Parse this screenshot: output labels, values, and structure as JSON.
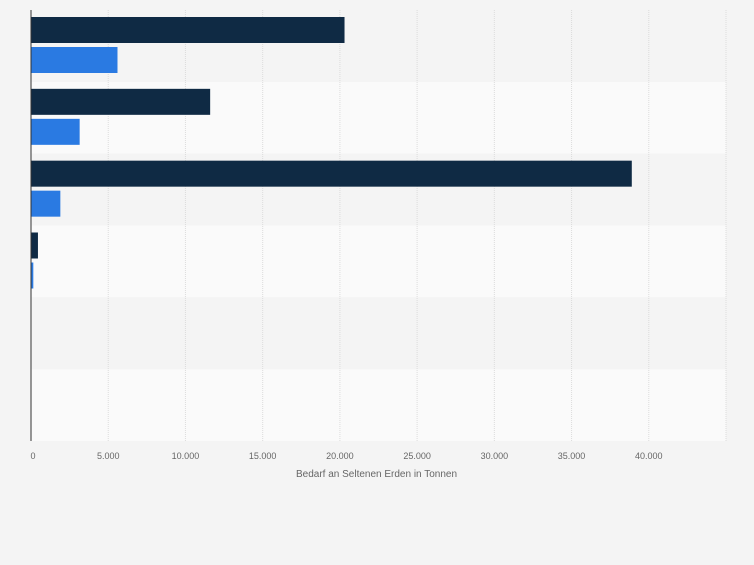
{
  "chart_data": {
    "type": "bar",
    "orientation": "horizontal",
    "categories": [
      "",
      "",
      "",
      "",
      "",
      ""
    ],
    "series": [
      {
        "values": [
          20300,
          11600,
          38900,
          450,
          0,
          0
        ]
      },
      {
        "values": [
          5600,
          3150,
          1900,
          150,
          0,
          0
        ]
      }
    ],
    "xlabel": "Bedarf an Seltenen Erden in Tonnen",
    "ylabel": "",
    "xlim": [
      0,
      45000
    ],
    "xticks": [
      0,
      5000,
      10000,
      15000,
      20000,
      25000,
      30000,
      35000,
      40000
    ],
    "xtick_labels": [
      "0",
      "5.000",
      "10.000",
      "15.000",
      "20.000",
      "25.000",
      "30.000",
      "35.000",
      "40.000"
    ],
    "grid": true,
    "legend": "none"
  },
  "colors": {
    "series": [
      "#0f2a44",
      "#2a7ae2"
    ],
    "band_even": "#f4f4f4",
    "band_odd": "#fafafa",
    "grid": "#dcdcdc",
    "axis": "#333333",
    "tick_text": "#666666",
    "page_background": "#f4f4f4"
  }
}
